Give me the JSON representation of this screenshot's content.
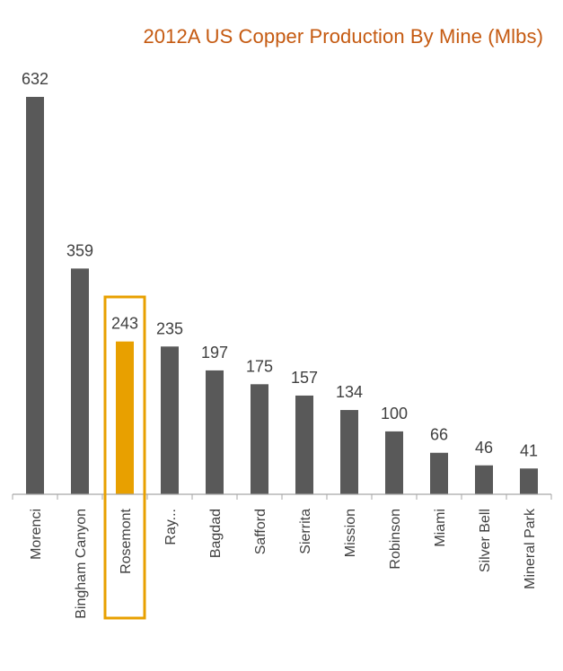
{
  "chart_data": {
    "type": "bar",
    "title": "2012A US Copper Production By Mine (Mlbs)",
    "categories": [
      "Morenci",
      "Bingham Canyon",
      "Rosemont",
      "Ray...",
      "Bagdad",
      "Safford",
      "Sierrita",
      "Mission",
      "Robinson",
      "Miami",
      "Silver Bell",
      "Mineral Park"
    ],
    "values": [
      632,
      359,
      243,
      235,
      197,
      175,
      157,
      134,
      100,
      66,
      46,
      41
    ],
    "xlabel": "",
    "ylabel": "",
    "ylim": [
      0,
      632
    ],
    "grid": false,
    "legend": "none",
    "highlight_category": "Rosemont",
    "colors": {
      "bar": "#595959",
      "highlight_bar": "#e8a000",
      "highlight_box": "#e8a000",
      "title": "#c55a11",
      "text": "#404040",
      "axis": "#a6a6a6"
    }
  }
}
